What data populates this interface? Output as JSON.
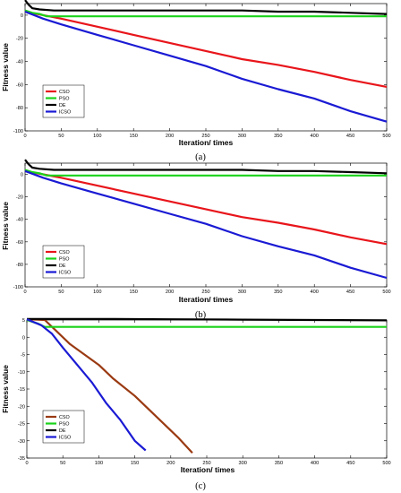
{
  "chart_data": [
    {
      "type": "line",
      "caption": "(a)",
      "xlabel": "Iteration/ times",
      "ylabel": "Fitness value",
      "xlim": [
        0,
        500
      ],
      "ylim": [
        -100,
        10
      ],
      "xticks": [
        0,
        50,
        100,
        150,
        200,
        250,
        300,
        350,
        400,
        450,
        500
      ],
      "yticks": [
        0,
        -20,
        -40,
        -60,
        -80,
        -100
      ],
      "legend_position": "lower-left",
      "series": [
        {
          "name": "CSO",
          "color": "#e8151b",
          "x": [
            0,
            25,
            50,
            100,
            150,
            200,
            250,
            300,
            350,
            400,
            450,
            500
          ],
          "y": [
            3,
            0,
            -3,
            -10,
            -17,
            -24,
            -31,
            -38,
            -43,
            -49,
            -56,
            -62
          ]
        },
        {
          "name": "PSO",
          "color": "#1bd21b",
          "x": [
            0,
            10,
            20,
            30,
            500
          ],
          "y": [
            4,
            2,
            1,
            -1,
            -1
          ]
        },
        {
          "name": "DE",
          "color": "#000000",
          "x": [
            0,
            5,
            10,
            20,
            40,
            100,
            200,
            300,
            350,
            400,
            450,
            500
          ],
          "y": [
            13,
            9,
            6,
            5,
            4,
            4,
            4,
            4,
            3,
            3,
            2,
            1
          ]
        },
        {
          "name": "ICSO",
          "color": "#1a1ad4",
          "x": [
            0,
            25,
            50,
            100,
            150,
            200,
            250,
            300,
            350,
            400,
            450,
            500
          ],
          "y": [
            3,
            -3,
            -8,
            -17,
            -26,
            -35,
            -44,
            -55,
            -64,
            -72,
            -83,
            -92
          ]
        }
      ]
    },
    {
      "type": "line",
      "caption": "(b)",
      "xlabel": "Iteration/ times",
      "ylabel": "Fitness value",
      "xlim": [
        0,
        500
      ],
      "ylim": [
        -100,
        10
      ],
      "xticks": [
        0,
        50,
        100,
        150,
        200,
        250,
        300,
        350,
        400,
        450,
        500
      ],
      "yticks": [
        0,
        -20,
        -40,
        -60,
        -80,
        -100
      ],
      "legend_position": "lower-left",
      "series": [
        {
          "name": "CSO",
          "color": "#e8151b",
          "x": [
            0,
            25,
            50,
            100,
            150,
            200,
            250,
            300,
            350,
            400,
            450,
            500
          ],
          "y": [
            3,
            0,
            -3,
            -10,
            -17,
            -24,
            -31,
            -38,
            -43,
            -49,
            -56,
            -62
          ]
        },
        {
          "name": "PSO",
          "color": "#1bd21b",
          "x": [
            0,
            10,
            20,
            30,
            500
          ],
          "y": [
            4,
            2,
            1,
            -1,
            -1
          ]
        },
        {
          "name": "DE",
          "color": "#000000",
          "x": [
            0,
            5,
            10,
            20,
            40,
            100,
            200,
            300,
            350,
            400,
            450,
            500
          ],
          "y": [
            13,
            9,
            6,
            5,
            4,
            4,
            4,
            4,
            3,
            3,
            2,
            1
          ]
        },
        {
          "name": "ICSO",
          "color": "#1a1ad4",
          "x": [
            0,
            25,
            50,
            100,
            150,
            200,
            250,
            300,
            350,
            400,
            450,
            500
          ],
          "y": [
            3,
            -3,
            -8,
            -17,
            -26,
            -35,
            -44,
            -55,
            -64,
            -72,
            -83,
            -92
          ]
        }
      ]
    },
    {
      "type": "line",
      "caption": "(c)",
      "xlabel": "Iteration/ times",
      "ylabel": "Fitness value",
      "xlim": [
        0,
        500
      ],
      "ylim": [
        -35,
        5
      ],
      "xticks": [
        0,
        50,
        100,
        150,
        200,
        250,
        300,
        350,
        400,
        450,
        500
      ],
      "yticks": [
        5,
        0,
        -5,
        -10,
        -15,
        -20,
        -25,
        -30,
        -35
      ],
      "legend_position": "lower-left",
      "series": [
        {
          "name": "CSO",
          "color": "#9a3a12",
          "x": [
            0,
            25,
            40,
            60,
            80,
            100,
            120,
            150,
            180,
            210,
            230
          ],
          "y": [
            5.2,
            5.0,
            2.0,
            -2.0,
            -5.0,
            -8.0,
            -12.0,
            -17.0,
            -23.0,
            -29.0,
            -33.5
          ]
        },
        {
          "name": "PSO",
          "color": "#1bd21b",
          "x": [
            0,
            15,
            25,
            500
          ],
          "y": [
            5,
            4,
            3,
            3
          ]
        },
        {
          "name": "DE",
          "color": "#000000",
          "x": [
            0,
            100,
            200,
            300,
            400,
            500
          ],
          "y": [
            5.3,
            5.3,
            5.2,
            5.1,
            5.0,
            4.9
          ]
        },
        {
          "name": "ICSO",
          "color": "#1a1ad4",
          "x": [
            0,
            20,
            35,
            50,
            70,
            90,
            110,
            130,
            150,
            165
          ],
          "y": [
            5.2,
            3.5,
            1.0,
            -3.0,
            -8.0,
            -13.0,
            -19.0,
            -24.0,
            -30.0,
            -32.8
          ]
        }
      ]
    }
  ]
}
